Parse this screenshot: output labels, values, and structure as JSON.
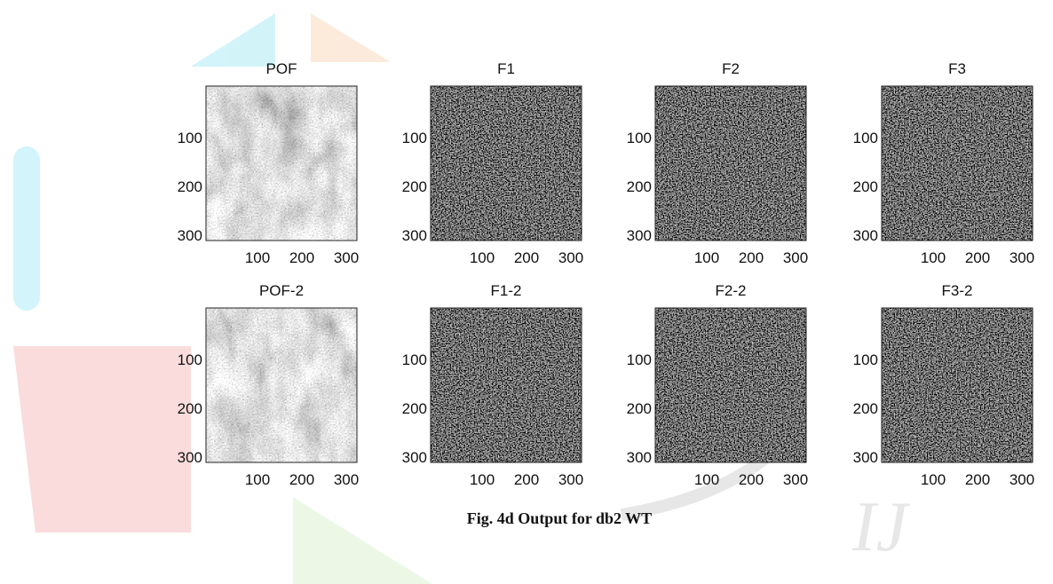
{
  "figure": {
    "caption": "Fig. 4d Output for db2 WT",
    "panels": [
      {
        "title": "POF",
        "yticks": [
          100,
          200,
          300
        ],
        "xticks": [
          100,
          200,
          300
        ]
      },
      {
        "title": "F1",
        "yticks": [
          100,
          200,
          300
        ],
        "xticks": [
          100,
          200,
          300
        ]
      },
      {
        "title": "F2",
        "yticks": [
          100,
          200,
          300
        ],
        "xticks": [
          100,
          200,
          300
        ]
      },
      {
        "title": "F3",
        "yticks": [
          100,
          200,
          300
        ],
        "xticks": [
          100,
          200,
          300
        ]
      },
      {
        "title": "POF-2",
        "yticks": [
          100,
          200,
          300
        ],
        "xticks": [
          100,
          200,
          300
        ]
      },
      {
        "title": "F1-2",
        "yticks": [
          100,
          200,
          300
        ],
        "xticks": [
          100,
          200,
          300
        ]
      },
      {
        "title": "F2-2",
        "yticks": [
          100,
          200,
          300
        ],
        "xticks": [
          100,
          200,
          300
        ]
      },
      {
        "title": "F3-2",
        "yticks": [
          100,
          200,
          300
        ],
        "xticks": [
          100,
          200,
          300
        ]
      }
    ]
  }
}
